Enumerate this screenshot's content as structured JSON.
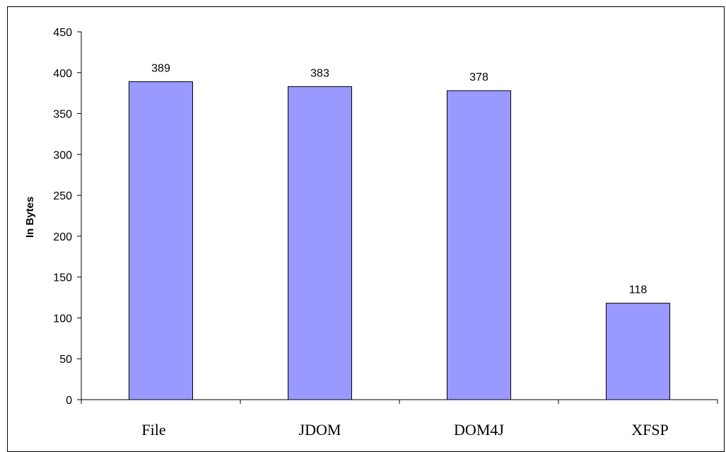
{
  "chart_data": {
    "type": "bar",
    "categories": [
      "File",
      "JDOM",
      "DOM4J",
      "XFSP"
    ],
    "values": [
      389,
      383,
      378,
      118
    ],
    "data_labels": [
      "389",
      "383",
      "378",
      "118"
    ],
    "title": "",
    "xlabel": "",
    "ylabel": "In Bytes",
    "ylim": [
      0,
      450
    ],
    "yticks": [
      0,
      50,
      100,
      150,
      200,
      250,
      300,
      350,
      400,
      450
    ],
    "grid": false,
    "legend": "none",
    "bar_color": "#9999FF",
    "bar_border_color": "#000000"
  }
}
